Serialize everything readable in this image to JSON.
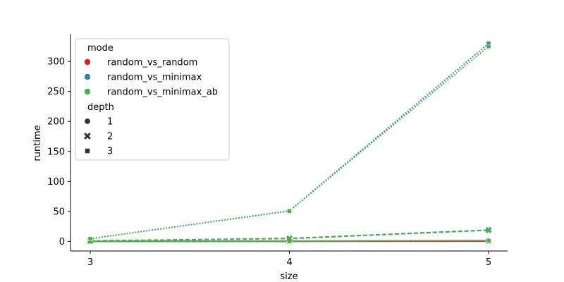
{
  "chart_data": {
    "type": "line",
    "title": "",
    "xlabel": "size",
    "ylabel": "runtime",
    "x": [
      3,
      4,
      5
    ],
    "xticks": [
      "3",
      "4",
      "5"
    ],
    "yticks": [
      "0",
      "50",
      "100",
      "150",
      "200",
      "250",
      "300"
    ],
    "ylim": [
      -16,
      346
    ],
    "grid": false,
    "legend_placement": "top-left",
    "legend": {
      "mode_title": "mode",
      "depth_title": "depth",
      "modes": [
        "random_vs_random",
        "random_vs_minimax",
        "random_vs_minimax_ab"
      ],
      "mode_colors": [
        "#e41a1c",
        "#377eb8",
        "#4daf4a"
      ],
      "depths": [
        "1",
        "2",
        "3"
      ],
      "depth_markers": [
        "circle",
        "x",
        "square"
      ]
    },
    "series": [
      {
        "mode": "random_vs_random",
        "depth": "1",
        "color": "#e41a1c",
        "dash": "solid",
        "marker": "circle",
        "values": [
          0.05,
          0.1,
          0.3
        ]
      },
      {
        "mode": "random_vs_random",
        "depth": "2",
        "color": "#e41a1c",
        "dash": "dashed",
        "marker": "x",
        "values": [
          0.05,
          0.1,
          0.3
        ]
      },
      {
        "mode": "random_vs_random",
        "depth": "3",
        "color": "#e41a1c",
        "dash": "dotted",
        "marker": "square",
        "values": [
          0.05,
          0.1,
          0.3
        ]
      },
      {
        "mode": "random_vs_minimax",
        "depth": "1",
        "color": "#377eb8",
        "dash": "solid",
        "marker": "circle",
        "values": [
          0.2,
          0.6,
          1.5
        ]
      },
      {
        "mode": "random_vs_minimax",
        "depth": "2",
        "color": "#377eb8",
        "dash": "dashed",
        "marker": "x",
        "values": [
          1.0,
          5.0,
          19.0
        ]
      },
      {
        "mode": "random_vs_minimax",
        "depth": "3",
        "color": "#377eb8",
        "dash": "dotted",
        "marker": "square",
        "values": [
          4.5,
          51.0,
          330.0
        ]
      },
      {
        "mode": "random_vs_minimax_ab",
        "depth": "1",
        "color": "#4daf4a",
        "dash": "solid",
        "marker": "circle",
        "values": [
          0.2,
          0.5,
          1.2
        ]
      },
      {
        "mode": "random_vs_minimax_ab",
        "depth": "2",
        "color": "#4daf4a",
        "dash": "dashed",
        "marker": "x",
        "values": [
          1.0,
          4.5,
          18.5
        ]
      },
      {
        "mode": "random_vs_minimax_ab",
        "depth": "3",
        "color": "#4daf4a",
        "dash": "dotted",
        "marker": "square",
        "values": [
          4.5,
          50.5,
          325.0
        ]
      }
    ]
  }
}
